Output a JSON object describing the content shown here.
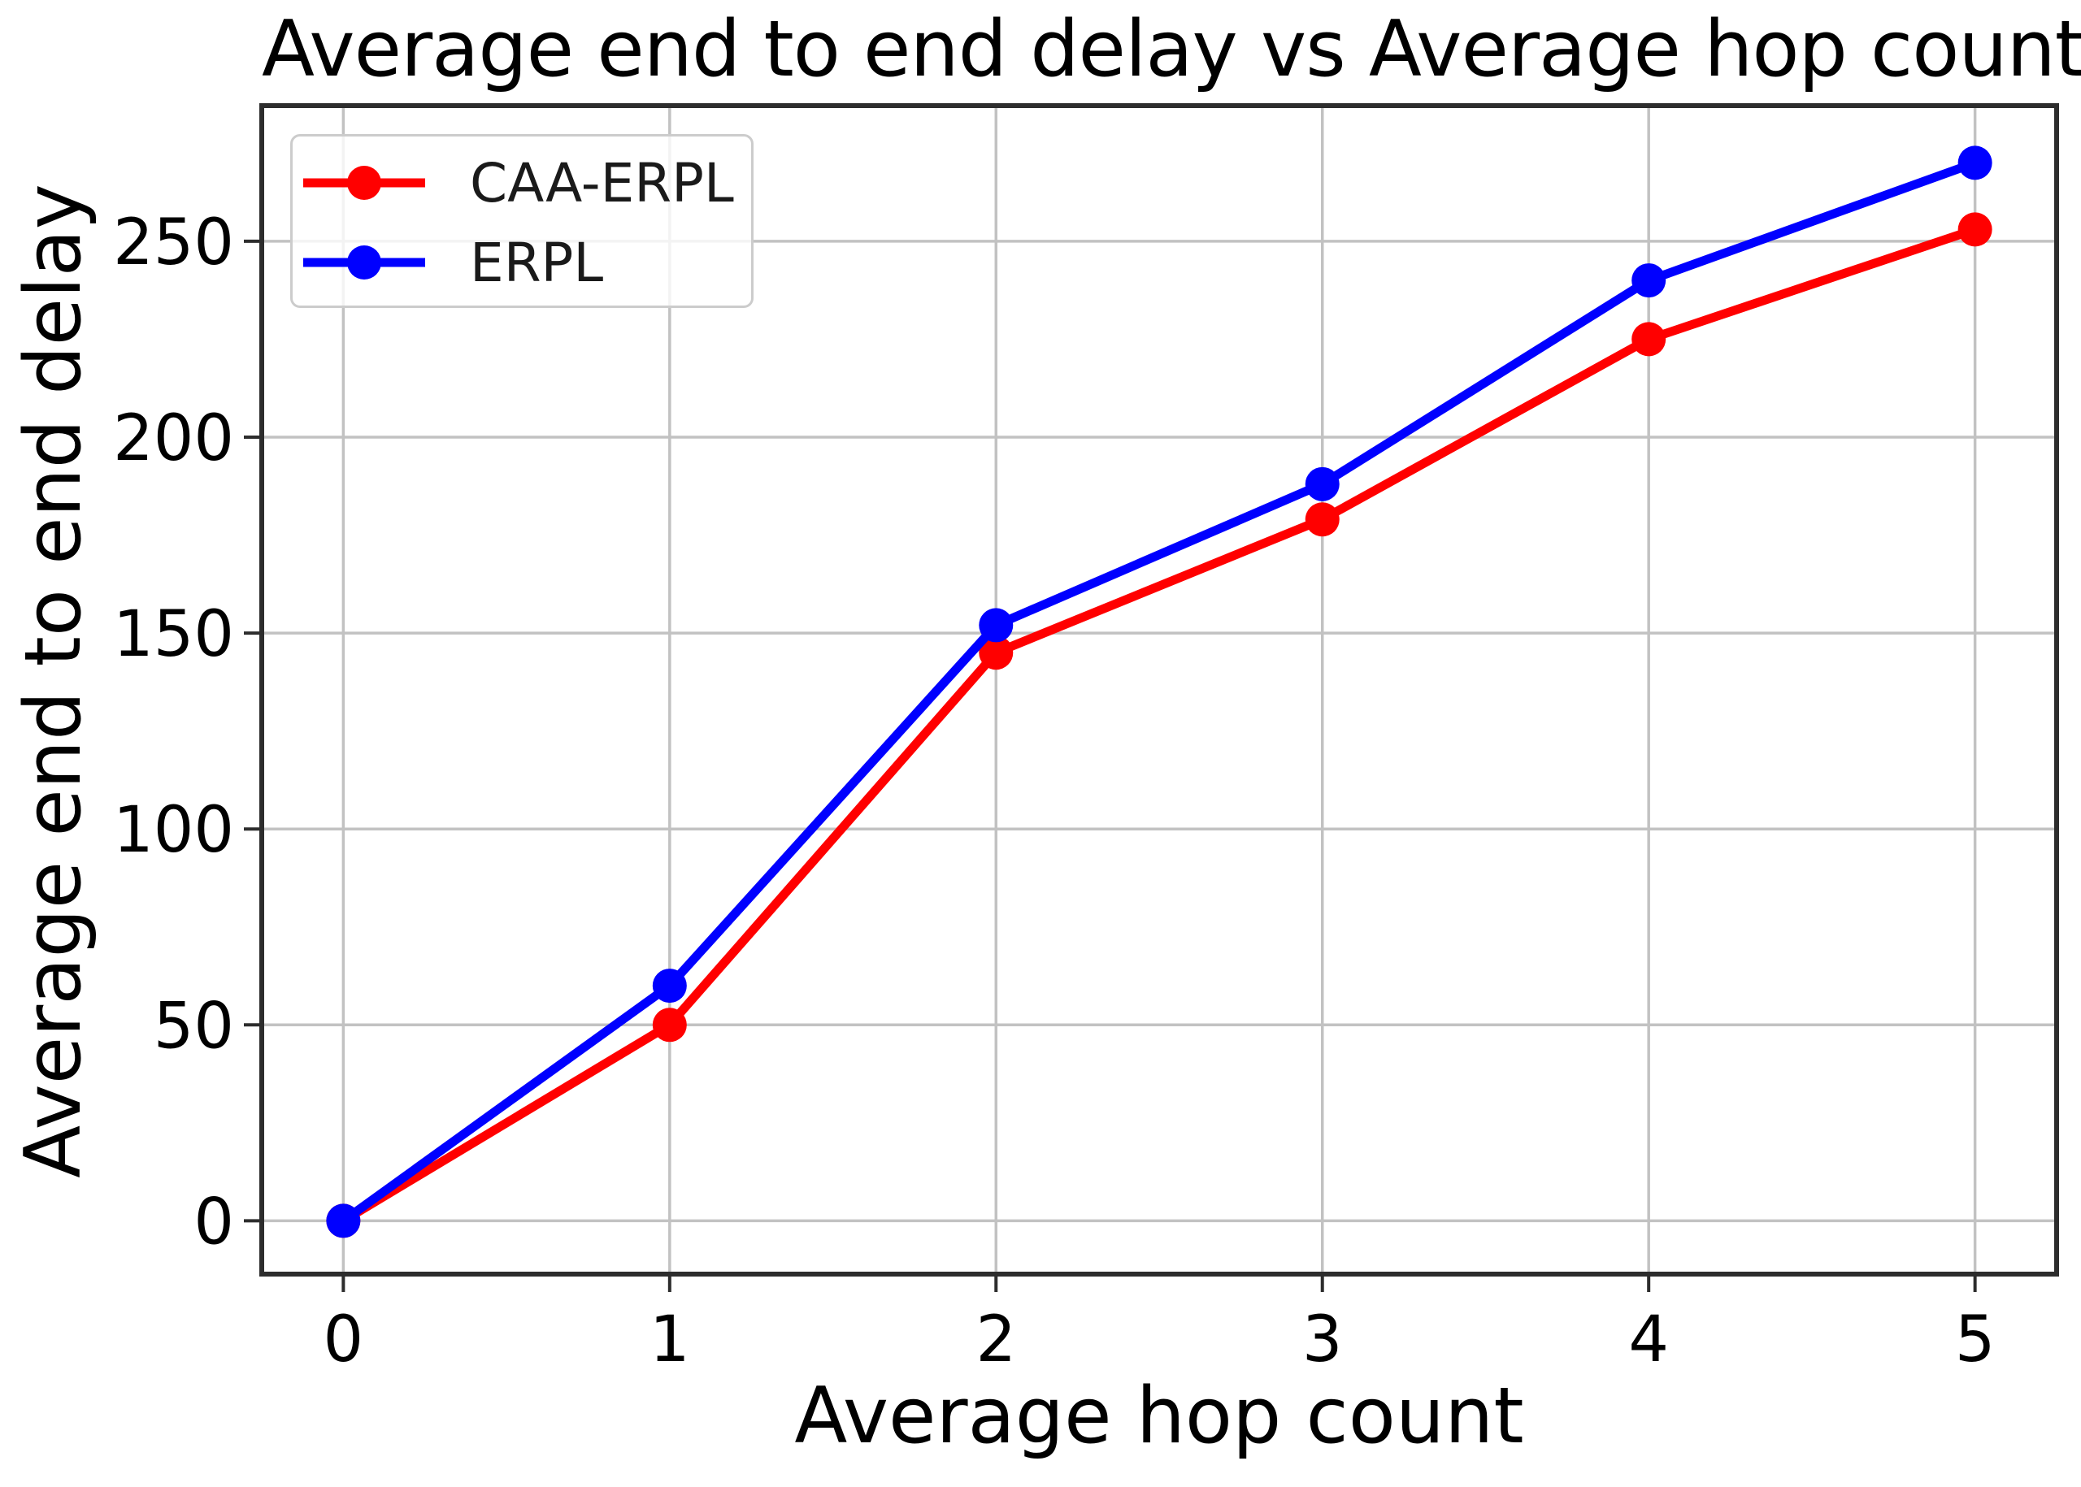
{
  "chart_data": {
    "type": "line",
    "title": "Average end to end delay vs Average hop count",
    "xlabel": "Average hop count",
    "ylabel": "Average end to end delay",
    "x": [
      0,
      1,
      2,
      3,
      4,
      5
    ],
    "series": [
      {
        "name": "CAA-ERPL",
        "color": "#ff0000",
        "values": [
          0,
          50,
          145,
          179,
          225,
          253
        ]
      },
      {
        "name": "ERPL",
        "color": "#0000ff",
        "values": [
          0,
          60,
          152,
          188,
          240,
          270
        ]
      }
    ],
    "xticks": [
      0,
      1,
      2,
      3,
      4,
      5
    ],
    "yticks": [
      0,
      50,
      100,
      150,
      200,
      250
    ],
    "xlim": [
      -0.25,
      5.25
    ],
    "ylim": [
      -13.6,
      284.6
    ],
    "grid": true,
    "legend_position": "upper left"
  },
  "style_colors": {
    "grid": "#c2c2c2",
    "spine": "#2d2d2d",
    "tick": "#2d2d2d",
    "text": "#000000",
    "legend_border": "#cccccc"
  }
}
